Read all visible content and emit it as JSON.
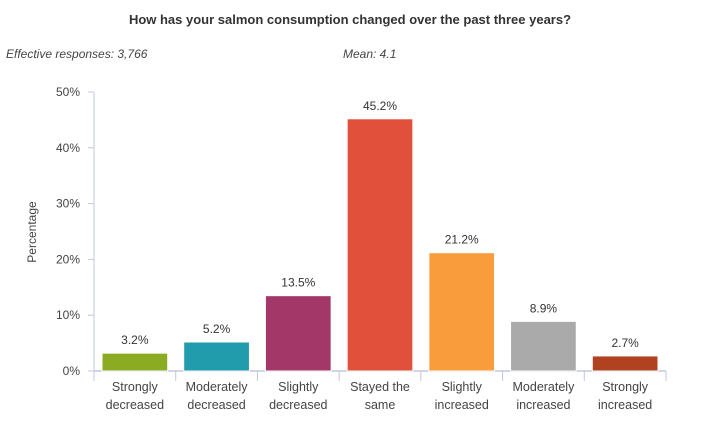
{
  "chart_data": {
    "type": "bar",
    "title": "How has your salmon consumption changed over the past three years?",
    "effective_responses": "Effective responses: 3,766",
    "mean": "Mean: 4.1",
    "ylabel": "Percentage",
    "xlabel": "",
    "ylim": [
      0,
      50
    ],
    "yticks": [
      0,
      10,
      20,
      30,
      40,
      50
    ],
    "ytick_labels": [
      "0%",
      "10%",
      "20%",
      "30%",
      "40%",
      "50%"
    ],
    "categories": [
      [
        "Strongly",
        "decreased"
      ],
      [
        "Moderately",
        "decreased"
      ],
      [
        "Slightly",
        "decreased"
      ],
      [
        "Stayed the",
        "same"
      ],
      [
        "Slightly",
        "increased"
      ],
      [
        "Moderately",
        "increased"
      ],
      [
        "Strongly",
        "increased"
      ]
    ],
    "values": [
      3.2,
      5.2,
      13.5,
      45.2,
      21.2,
      8.9,
      2.7
    ],
    "value_labels": [
      "3.2%",
      "5.2%",
      "13.5%",
      "45.2%",
      "21.2%",
      "8.9%",
      "2.7%"
    ],
    "colors": [
      "#8aab22",
      "#209cac",
      "#a33768",
      "#e0503a",
      "#f89c3c",
      "#aaaaaa",
      "#b04222"
    ],
    "grid": false,
    "legend": "none"
  }
}
